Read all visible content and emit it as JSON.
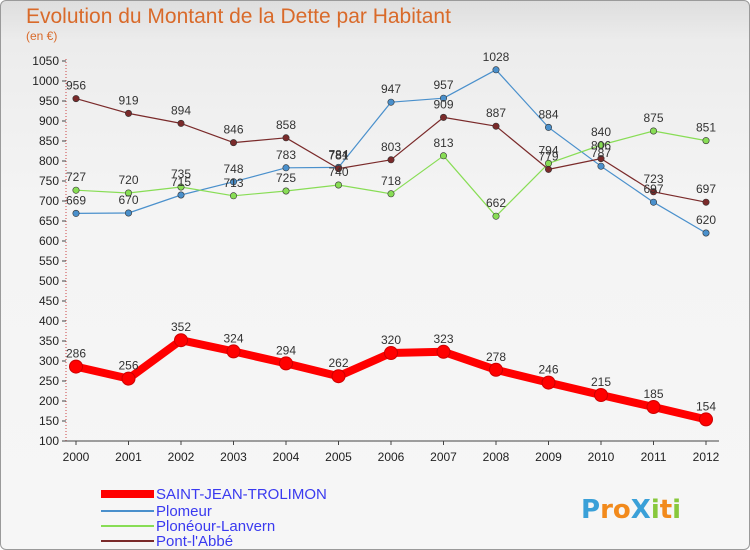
{
  "chart_data": {
    "type": "line",
    "title": "Evolution du Montant de la Dette par Habitant",
    "subtitle": "(en €)",
    "categories": [
      "2000",
      "2001",
      "2002",
      "2003",
      "2004",
      "2005",
      "2006",
      "2007",
      "2008",
      "2009",
      "2010",
      "2011",
      "2012"
    ],
    "y_ticks": [
      100,
      150,
      200,
      250,
      300,
      350,
      400,
      450,
      500,
      550,
      600,
      650,
      700,
      750,
      800,
      850,
      900,
      950,
      1000,
      1050
    ],
    "ylim": [
      100,
      1050
    ],
    "grid": false,
    "legend_position": "bottom-left",
    "series": [
      {
        "name": "SAINT-JEAN-TROLIMON",
        "color": "#ff0000",
        "values": [
          286,
          256,
          352,
          324,
          294,
          262,
          320,
          323,
          278,
          246,
          215,
          185,
          154
        ]
      },
      {
        "name": "Plomeur",
        "color": "#4a90cc",
        "values": [
          669,
          670,
          715,
          748,
          783,
          784,
          947,
          957,
          1028,
          884,
          787,
          697,
          620
        ]
      },
      {
        "name": "Plonéour-Lanvern",
        "color": "#88dd55",
        "values": [
          727,
          720,
          735,
          713,
          725,
          740,
          718,
          813,
          662,
          794,
          840,
          875,
          851
        ]
      },
      {
        "name": "Pont-l'Abbé",
        "color": "#7a2a2a",
        "values": [
          956,
          919,
          894,
          846,
          858,
          781,
          803,
          909,
          887,
          779,
          806,
          723,
          697
        ]
      }
    ]
  },
  "branding": {
    "logo_text": "ProXiti",
    "logo_letters": [
      {
        "char": "P",
        "color": "#3aa0d8"
      },
      {
        "char": "r",
        "color": "#f28a1c"
      },
      {
        "char": "o",
        "color": "#f28a1c"
      },
      {
        "char": "X",
        "color": "#3aa0d8"
      },
      {
        "char": "i",
        "color": "#88c83c"
      },
      {
        "char": "t",
        "color": "#f28a1c"
      },
      {
        "char": "i",
        "color": "#88c83c"
      }
    ]
  }
}
